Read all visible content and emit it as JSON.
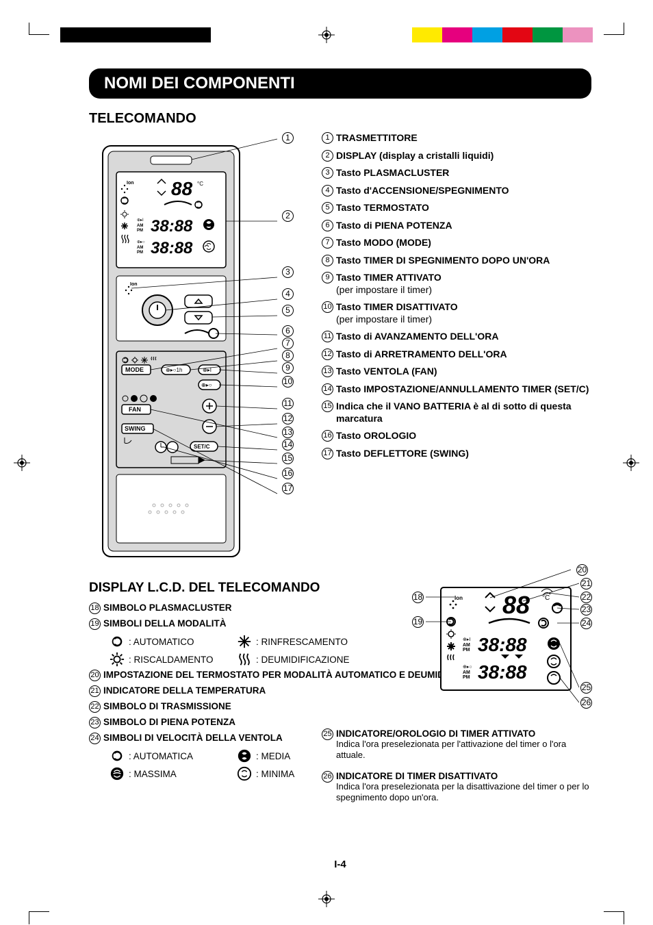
{
  "printMarks": {
    "leftBars": [
      "#000000",
      "#000000",
      "#000000",
      "#000000",
      "#000000"
    ],
    "rightBars": [
      "#ffea00",
      "#e6007e",
      "#00a0e3",
      "#e30613",
      "#009640",
      "#ec92bf"
    ]
  },
  "title": "NOMI DEI COMPONENTI",
  "sectionRemote": "TELECOMANDO",
  "legend": [
    {
      "n": "1",
      "txt": "TRASMETTITORE"
    },
    {
      "n": "2",
      "txt": "DISPLAY (display a cristalli liquidi)"
    },
    {
      "n": "3",
      "txt": "Tasto PLASMACLUSTER"
    },
    {
      "n": "4",
      "txt": "Tasto d'ACCENSIONE/SPEGNIMENTO"
    },
    {
      "n": "5",
      "txt": "Tasto TERMOSTATO"
    },
    {
      "n": "6",
      "txt": "Tasto di PIENA POTENZA"
    },
    {
      "n": "7",
      "txt": "Tasto MODO (MODE)"
    },
    {
      "n": "8",
      "txt": "Tasto TIMER DI SPEGNIMENTO DOPO UN'ORA"
    },
    {
      "n": "9",
      "txt": "Tasto TIMER ATTIVATO",
      "sub": "(per impostare il timer)"
    },
    {
      "n": "10",
      "txt": "Tasto TIMER DISATTIVATO",
      "sub": "(per impostare il timer)"
    },
    {
      "n": "11",
      "txt": "Tasto di AVANZAMENTO DELL'ORA"
    },
    {
      "n": "12",
      "txt": "Tasto di ARRETRAMENTO DELL'ORA"
    },
    {
      "n": "13",
      "txt": "Tasto VENTOLA (FAN)"
    },
    {
      "n": "14",
      "txt": "Tasto IMPOSTAZIONE/ANNULLAMENTO TIMER (SET/C)"
    },
    {
      "n": "15",
      "txt": "Indica che il VANO BATTERIA è al di sotto di questa marcatura"
    },
    {
      "n": "16",
      "txt": "Tasto OROLOGIO"
    },
    {
      "n": "17",
      "txt": "Tasto DEFLETTORE (SWING)"
    }
  ],
  "sectionLcd": "DISPLAY L.C.D. DEL TELECOMANDO",
  "lcdLegend": [
    {
      "n": "18",
      "txt": "SIMBOLO PLASMACLUSTER"
    },
    {
      "n": "19",
      "txt": "SIMBOLI DELLA MODALITÀ"
    },
    {
      "n": "20",
      "txt": "IMPOSTAZIONE DEL TERMOSTATO PER MODALITÀ AUTOMATICO E DEUMIDIFICAZIONE"
    },
    {
      "n": "21",
      "txt": "INDICATORE DELLA TEMPERATURA"
    },
    {
      "n": "22",
      "txt": "SIMBOLO DI TRASMISSIONE"
    },
    {
      "n": "23",
      "txt": "SIMBOLO DI PIENA POTENZA"
    },
    {
      "n": "24",
      "txt": "SIMBOLI DI VELOCITÀ DELLA VENTOLA"
    }
  ],
  "lcdLegendRight": [
    {
      "n": "25",
      "txt": "INDICATORE/OROLOGIO DI TIMER ATTIVATO",
      "sub": "Indica l'ora preselezionata per l'attivazione del timer o l'ora attuale."
    },
    {
      "n": "26",
      "txt": "INDICATORE DI TIMER DISATTIVATO",
      "sub": "Indica l'ora preselezionata per la disattivazione del timer o per lo spegnimento dopo un'ora."
    }
  ],
  "modes": {
    "auto": "AUTOMATICO",
    "cool": "RINFRESCAMENTO",
    "heat": "RISCALDAMENTO",
    "dry": "DEUMIDIFICAZIONE"
  },
  "fanSpeeds": {
    "auto": "AUTOMATICA",
    "med": "MEDIA",
    "max": "MASSIMA",
    "min": "MINIMA"
  },
  "remoteLabels": {
    "mode": "MODE",
    "fan": "FAN",
    "swing": "SWING",
    "setc": "SET/C",
    "ion": "Ion",
    "ampm1": "AM",
    "ampm2": "PM"
  },
  "pageNum": "I-4",
  "styling": {
    "titleBg": "#000000",
    "titleColor": "#ffffff",
    "bodyColor": "#000000",
    "remoteFill": "#d9d9d9",
    "remoteStroke": "#000000",
    "displayFill": "#ffffff",
    "titleFontSize": 24,
    "headingFontSize": 20,
    "legendFontSize": 14,
    "lcdFontSize": 13.5,
    "pageWidth": 954,
    "pageHeight": 1351
  }
}
